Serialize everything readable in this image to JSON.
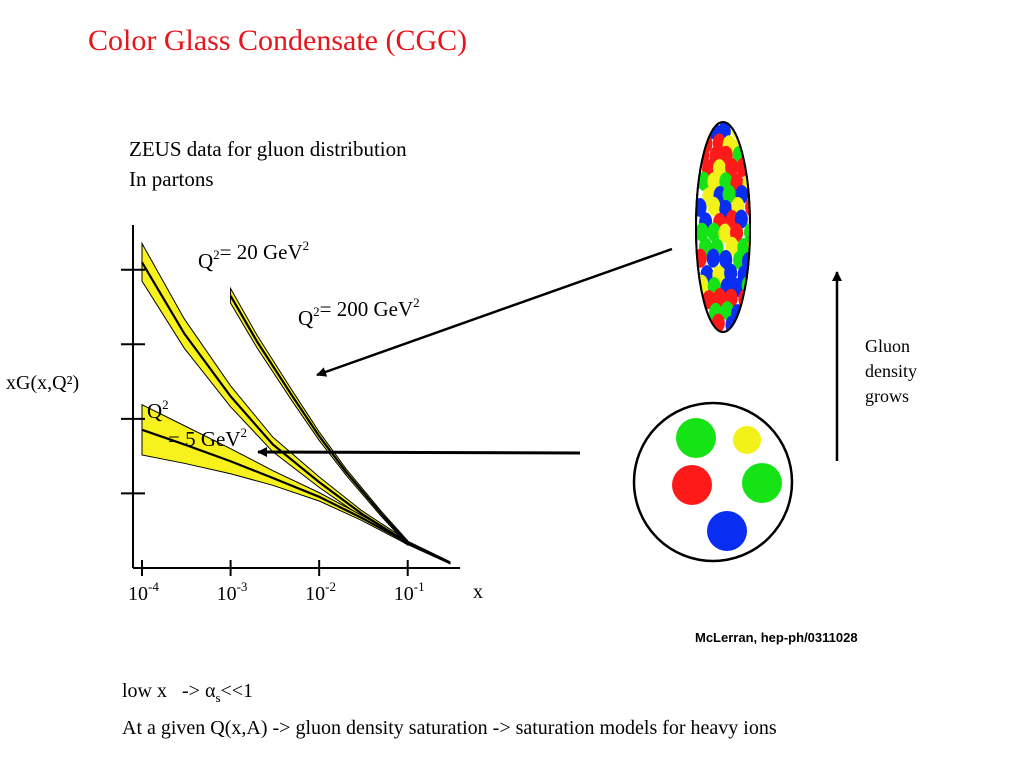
{
  "title": "Color Glass Condensate (CGC)",
  "caption": {
    "line1": "ZEUS data for gluon distribution",
    "line2": "In partons"
  },
  "annotation": {
    "line1": "Gluon",
    "line2": "density",
    "line3": "grows"
  },
  "credit": "McLerran, hep-ph/0311028",
  "bottom_text": {
    "line1_prefix": "low x   -> ",
    "alpha_symbol": "α",
    "alpha_subscript": "s",
    "line1_suffix": "<<1",
    "line2": "At a given Q(x,A) -> gluon density saturation -> saturation models for heavy ions"
  },
  "colors": {
    "title": "#e8141b",
    "band": "#f7f21c",
    "parton_red": "#ff1a1a",
    "parton_green": "#16e316",
    "parton_blue": "#0a2df2",
    "parton_yellow": "#f2f218"
  },
  "chart_data": {
    "type": "line",
    "title": "",
    "xlabel": "x",
    "ylabel": "xG(x,Q²)",
    "x_scale": "log",
    "xlim": [
      0.0001,
      0.3
    ],
    "x_ticks": [
      {
        "base": "10",
        "exp": "-4"
      },
      {
        "base": "10",
        "exp": "-3"
      },
      {
        "base": "10",
        "exp": "-2"
      },
      {
        "base": "10",
        "exp": "-1"
      }
    ],
    "y_ticks_labeled": false,
    "series": [
      {
        "name": "Q² = 20 GeV²",
        "x": [
          0.0001,
          0.0003,
          0.001,
          0.003,
          0.01,
          0.03,
          0.1
        ],
        "y": [
          14.6,
          11.2,
          8.2,
          5.9,
          4.1,
          2.6,
          1.2
        ],
        "band_width": [
          0.9,
          0.7,
          0.5,
          0.35,
          0.25,
          0.15,
          0.1
        ]
      },
      {
        "name": "Q² = 200 GeV²",
        "x": [
          0.001,
          0.002,
          0.005,
          0.01,
          0.02,
          0.05,
          0.1
        ],
        "y": [
          13.0,
          10.8,
          8.2,
          6.3,
          4.6,
          2.6,
          1.2
        ],
        "band_width": [
          0.35,
          0.3,
          0.25,
          0.2,
          0.15,
          0.12,
          0.1
        ]
      },
      {
        "name": "Q² = 5 GeV²",
        "x": [
          0.0001,
          0.0003,
          0.001,
          0.003,
          0.01,
          0.03,
          0.1,
          0.3
        ],
        "y": [
          6.6,
          5.9,
          5.1,
          4.3,
          3.4,
          2.4,
          1.2,
          0.25
        ],
        "band_width": [
          1.2,
          0.9,
          0.6,
          0.35,
          0.2,
          0.12,
          0.08,
          0.05
        ]
      }
    ]
  }
}
